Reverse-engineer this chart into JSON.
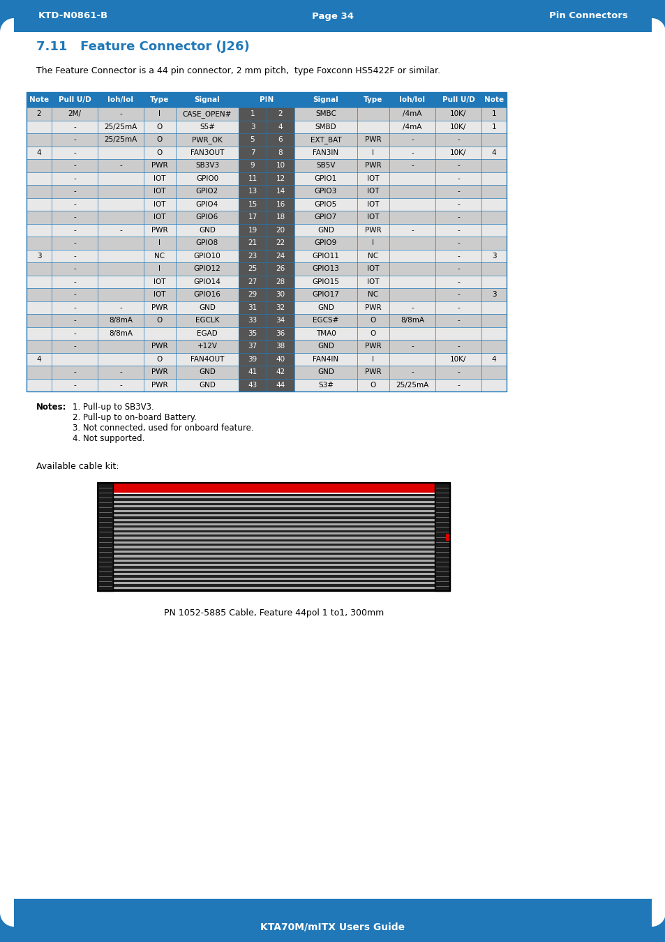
{
  "header_text_left": "KTD-N0861-B",
  "header_text_center": "Page 34",
  "header_text_right": "Pin Connectors",
  "header_bg": "#2078B8",
  "footer_text": "KTA70M/mITX Users Guide",
  "footer_bg": "#2078B8",
  "section_title": "7.11   Feature Connector (J26)",
  "section_title_color": "#2078B8",
  "description": "The Feature Connector is a 44 pin connector, 2 mm pitch,  type Foxconn HS5422F or similar.",
  "table_header_bg": "#2078B8",
  "table_header_color": "#FFFFFF",
  "pin_col_bg": "#555555",
  "pin_col_color": "#FFFFFF",
  "row_bg_even": "#CCCCCC",
  "row_bg_odd": "#E8E8E8",
  "grid_color": "#2078B8",
  "rows": [
    [
      "2",
      "2M/",
      "-",
      "I",
      "CASE_OPEN#",
      "1",
      "2",
      "SMBC",
      "",
      "/4mA",
      "10K/",
      "1"
    ],
    [
      "",
      "-",
      "25/25mA",
      "O",
      "S5#",
      "3",
      "4",
      "SMBD",
      "",
      "/4mA",
      "10K/",
      "1"
    ],
    [
      "",
      "-",
      "25/25mA",
      "O",
      "PWR_OK",
      "5",
      "6",
      "EXT_BAT",
      "PWR",
      "-",
      "-",
      ""
    ],
    [
      "4",
      "-",
      "",
      "O",
      "FAN3OUT",
      "7",
      "8",
      "FAN3IN",
      "I",
      "-",
      "10K/",
      "4"
    ],
    [
      "",
      "-",
      "-",
      "PWR",
      "SB3V3",
      "9",
      "10",
      "SB5V",
      "PWR",
      "-",
      "-",
      ""
    ],
    [
      "",
      "-",
      "",
      "IOT",
      "GPIO0",
      "11",
      "12",
      "GPIO1",
      "IOT",
      "",
      "-",
      ""
    ],
    [
      "",
      "-",
      "",
      "IOT",
      "GPIO2",
      "13",
      "14",
      "GPIO3",
      "IOT",
      "",
      "-",
      ""
    ],
    [
      "",
      "-",
      "",
      "IOT",
      "GPIO4",
      "15",
      "16",
      "GPIO5",
      "IOT",
      "",
      "-",
      ""
    ],
    [
      "",
      "-",
      "",
      "IOT",
      "GPIO6",
      "17",
      "18",
      "GPIO7",
      "IOT",
      "",
      "-",
      ""
    ],
    [
      "",
      "-",
      "-",
      "PWR",
      "GND",
      "19",
      "20",
      "GND",
      "PWR",
      "-",
      "-",
      ""
    ],
    [
      "",
      "-",
      "",
      "I",
      "GPIO8",
      "21",
      "22",
      "GPIO9",
      "I",
      "",
      "-",
      ""
    ],
    [
      "3",
      "-",
      "",
      "NC",
      "GPIO10",
      "23",
      "24",
      "GPIO11",
      "NC",
      "",
      "-",
      "3"
    ],
    [
      "",
      "-",
      "",
      "I",
      "GPIO12",
      "25",
      "26",
      "GPIO13",
      "IOT",
      "",
      "-",
      ""
    ],
    [
      "",
      "-",
      "",
      "IOT",
      "GPIO14",
      "27",
      "28",
      "GPIO15",
      "IOT",
      "",
      "-",
      ""
    ],
    [
      "",
      "-",
      "",
      "IOT",
      "GPIO16",
      "29",
      "30",
      "GPIO17",
      "NC",
      "",
      "-",
      "3"
    ],
    [
      "",
      "-",
      "-",
      "PWR",
      "GND",
      "31",
      "32",
      "GND",
      "PWR",
      "-",
      "-",
      ""
    ],
    [
      "",
      "-",
      "8/8mA",
      "O",
      "EGCLK",
      "33",
      "34",
      "EGCS#",
      "O",
      "8/8mA",
      "-",
      ""
    ],
    [
      "",
      "-",
      "8/8mA",
      "",
      "EGAD",
      "35",
      "36",
      "TMA0",
      "O",
      "",
      "",
      ""
    ],
    [
      "",
      "-",
      "",
      "PWR",
      "+12V",
      "37",
      "38",
      "GND",
      "PWR",
      "-",
      "-",
      ""
    ],
    [
      "4",
      "",
      "",
      "O",
      "FAN4OUT",
      "39",
      "40",
      "FAN4IN",
      "I",
      "",
      "10K/",
      "4"
    ],
    [
      "",
      "-",
      "-",
      "PWR",
      "GND",
      "41",
      "42",
      "GND",
      "PWR",
      "-",
      "-",
      ""
    ],
    [
      "",
      "-",
      "-",
      "PWR",
      "GND",
      "43",
      "44",
      "S3#",
      "O",
      "25/25mA",
      "-",
      ""
    ]
  ],
  "notes_label": "Notes:",
  "notes": [
    "1. Pull-up to SB3V3.",
    "2. Pull-up to on-board Battery.",
    "3. Not connected, used for onboard feature.",
    "4. Not supported."
  ],
  "cable_kit_label": "Available cable kit:",
  "cable_label": "PN 1052-5885 Cable, Feature 44pol 1 to1, 300mm"
}
